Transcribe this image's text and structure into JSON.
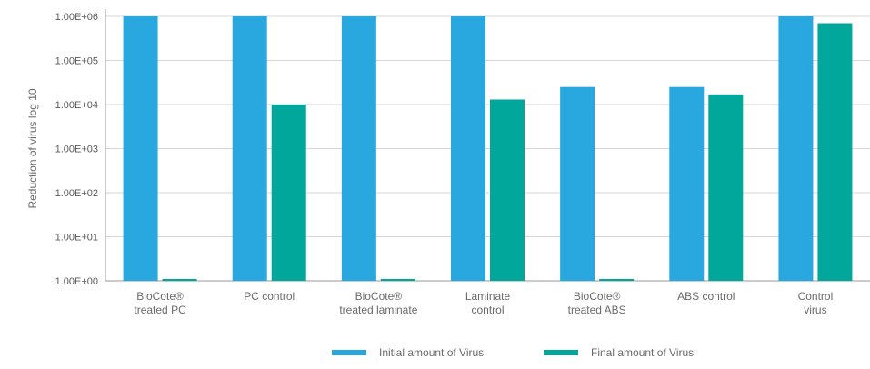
{
  "chart_data": {
    "type": "bar",
    "ylabel": "Reduction of virus log 10",
    "xlabel": "",
    "yscale": "log",
    "ylim": [
      1,
      1000000
    ],
    "y_tick_values": [
      1,
      10,
      100,
      1000,
      10000,
      100000,
      1000000
    ],
    "y_tick_labels": [
      "1.00E+00",
      "1.00E+01",
      "1.00E+02",
      "1.00E+03",
      "1.00E+04",
      "1.00E+05",
      "1.00E+06"
    ],
    "grid": true,
    "legend_position": "bottom-center",
    "categories": [
      [
        "BioCote®",
        "treated PC"
      ],
      [
        "PC control"
      ],
      [
        "BioCote®",
        "treated laminate"
      ],
      [
        "Laminate",
        "control"
      ],
      [
        "BioCote®",
        "treated ABS"
      ],
      [
        "ABS control"
      ],
      [
        "Control",
        "virus"
      ]
    ],
    "series": [
      {
        "name": "Initial amount of Virus",
        "color": "#29A8E0",
        "values": [
          1000000,
          1000000,
          1000000,
          1000000,
          25000,
          25000,
          1000000
        ]
      },
      {
        "name": "Final amount of Virus",
        "color": "#00A79A",
        "values": [
          1,
          10000,
          1,
          13000,
          1,
          17000,
          700000
        ]
      }
    ]
  }
}
